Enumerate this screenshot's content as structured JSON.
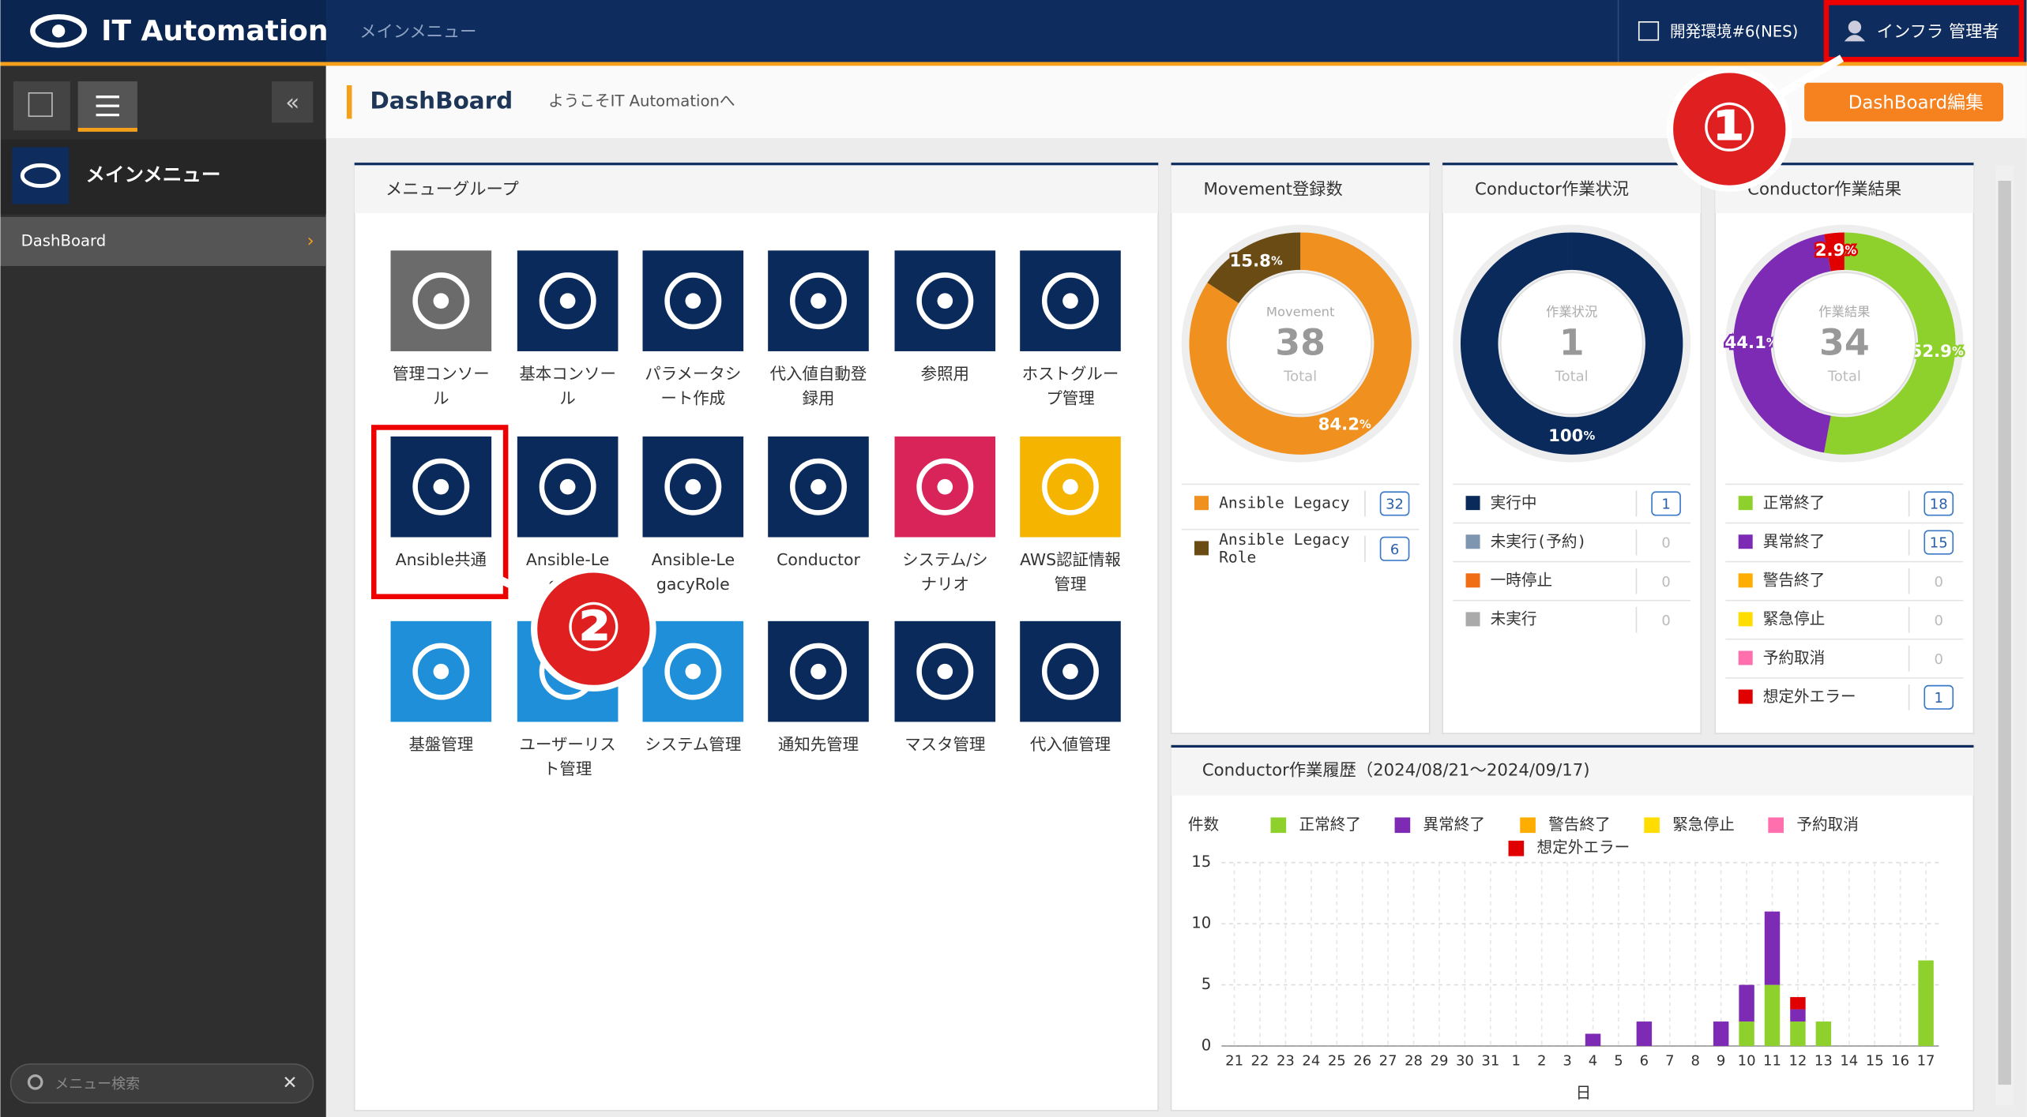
{
  "header": {
    "logo": "IT Automation",
    "breadcrumb": "メインメニュー",
    "environment": "開発環境#6(NES)",
    "user": "インフラ 管理者"
  },
  "sidebar": {
    "menu_title": "メインメニュー",
    "items": [
      "DashBoard"
    ],
    "search_placeholder": "メニュー検索"
  },
  "page": {
    "title": "DashBoard",
    "welcome": "ようこそIT Automationへ",
    "edit_button": "DashBoard編集"
  },
  "menu_group": {
    "title": "メニューグループ",
    "items": [
      "管理コンソール",
      "基本コンソール",
      "パラメータシート作成",
      "代入値自動登録用",
      "参照用",
      "ホストグループ管理",
      "Ansible共通",
      "Ansible-Legacy",
      "Ansible-LegacyRole",
      "Conductor",
      "システム/シナリオ",
      "AWS認証情報管理",
      "基盤管理",
      "ユーザーリスト管理",
      "システム管理",
      "通知先管理",
      "マスタ管理",
      "代入値管理"
    ]
  },
  "annotations": [
    "①",
    "②"
  ],
  "widgets": [
    {
      "type": "donut",
      "title": "Movement登録数",
      "center_label": "Movement",
      "total": 38,
      "total_label": "Total",
      "percent_sign": "%",
      "segments": [
        {
          "name": "Ansible Legacy",
          "color": "#f0901e",
          "value": 32,
          "percent": 84.2
        },
        {
          "name": "Ansible Legacy Role",
          "color": "#6b4b14",
          "value": 6,
          "percent": 15.8
        }
      ]
    },
    {
      "type": "donut",
      "title": "Conductor作業状況",
      "center_label": "作業状況",
      "total": 1,
      "total_label": "Total",
      "percent_sign": "%",
      "segments": [
        {
          "name": "実行中",
          "color": "#0b2a5c",
          "value": 1,
          "percent": 100
        },
        {
          "name": "未実行(予約)",
          "color": "#7f96b0",
          "value": 0
        },
        {
          "name": "一時停止",
          "color": "#f06d16",
          "value": 0
        },
        {
          "name": "未実行",
          "color": "#aaaaaa",
          "value": 0
        }
      ]
    },
    {
      "type": "donut",
      "title": "Conductor作業結果",
      "center_label": "作業結果",
      "total": 34,
      "total_label": "Total",
      "percent_sign": "%",
      "segments": [
        {
          "name": "正常終了",
          "color": "#8fd12c",
          "value": 18,
          "percent": 52.9
        },
        {
          "name": "異常終了",
          "color": "#7d2bb5",
          "value": 15,
          "percent": 44.1
        },
        {
          "name": "警告終了",
          "color": "#ffad00",
          "value": 0
        },
        {
          "name": "緊急停止",
          "color": "#ffdd00",
          "value": 0
        },
        {
          "name": "予約取消",
          "color": "#ff6fae",
          "value": 0
        },
        {
          "name": "想定外エラー",
          "color": "#e00000",
          "value": 1,
          "percent": 2.9
        }
      ]
    }
  ],
  "chart_data": {
    "type": "bar",
    "stacked": true,
    "title": "Conductor作業履歴（2024/08/21～2024/09/17)",
    "y_label": "件数",
    "x_label": "日",
    "categories": [
      "21",
      "22",
      "23",
      "24",
      "25",
      "26",
      "27",
      "28",
      "29",
      "30",
      "31",
      "1",
      "2",
      "3",
      "4",
      "5",
      "6",
      "7",
      "8",
      "9",
      "10",
      "11",
      "12",
      "13",
      "14",
      "15",
      "16",
      "17"
    ],
    "ylim": [
      0,
      15
    ],
    "yticks": [
      0,
      5,
      10,
      15
    ],
    "grid": true,
    "series": [
      {
        "name": "正常終了",
        "color": "#8fd12c",
        "values": [
          0,
          0,
          0,
          0,
          0,
          0,
          0,
          0,
          0,
          0,
          0,
          0,
          0,
          0,
          0,
          0,
          0,
          0,
          0,
          0,
          2,
          5,
          2,
          2,
          0,
          0,
          0,
          7
        ]
      },
      {
        "name": "異常終了",
        "color": "#7d2bb5",
        "values": [
          0,
          0,
          0,
          0,
          0,
          0,
          0,
          0,
          0,
          0,
          0,
          0,
          0,
          0,
          1,
          0,
          2,
          0,
          0,
          2,
          3,
          6,
          1,
          0,
          0,
          0,
          0,
          0
        ]
      },
      {
        "name": "警告終了",
        "color": "#ffad00",
        "values": [
          0,
          0,
          0,
          0,
          0,
          0,
          0,
          0,
          0,
          0,
          0,
          0,
          0,
          0,
          0,
          0,
          0,
          0,
          0,
          0,
          0,
          0,
          0,
          0,
          0,
          0,
          0,
          0
        ]
      },
      {
        "name": "緊急停止",
        "color": "#ffdd00",
        "values": [
          0,
          0,
          0,
          0,
          0,
          0,
          0,
          0,
          0,
          0,
          0,
          0,
          0,
          0,
          0,
          0,
          0,
          0,
          0,
          0,
          0,
          0,
          0,
          0,
          0,
          0,
          0,
          0
        ]
      },
      {
        "name": "予約取消",
        "color": "#ff6fae",
        "values": [
          0,
          0,
          0,
          0,
          0,
          0,
          0,
          0,
          0,
          0,
          0,
          0,
          0,
          0,
          0,
          0,
          0,
          0,
          0,
          0,
          0,
          0,
          0,
          0,
          0,
          0,
          0,
          0
        ]
      },
      {
        "name": "想定外エラー",
        "color": "#e00000",
        "values": [
          0,
          0,
          0,
          0,
          0,
          0,
          0,
          0,
          0,
          0,
          0,
          0,
          0,
          0,
          0,
          0,
          0,
          0,
          0,
          0,
          0,
          0,
          1,
          0,
          0,
          0,
          0,
          0
        ]
      }
    ]
  }
}
